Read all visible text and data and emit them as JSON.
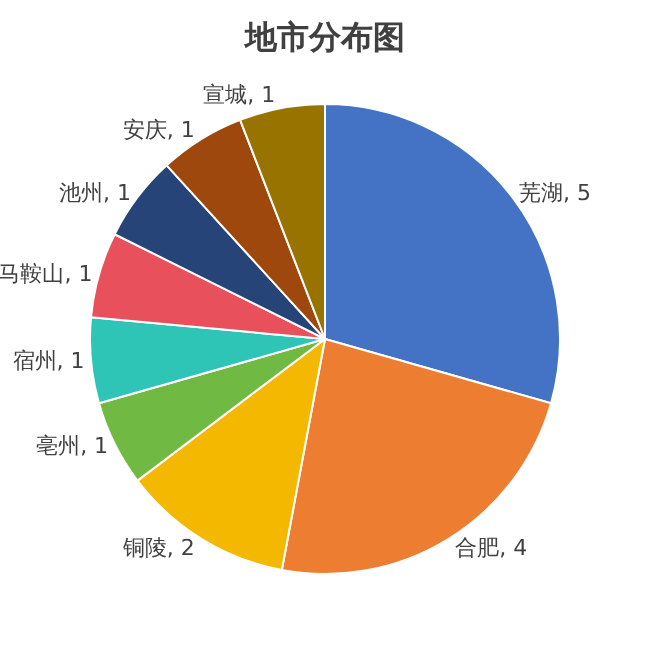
{
  "chart_data": {
    "type": "pie",
    "title": "地市分布图",
    "categories": [
      "芜湖",
      "合肥",
      "铜陵",
      "亳州",
      "宿州",
      "马鞍山",
      "池州",
      "安庆",
      "宣城"
    ],
    "values": [
      5,
      4,
      2,
      1,
      1,
      1,
      1,
      1,
      1
    ],
    "colors": [
      "#4472c4",
      "#ed7d31",
      "#f5b800",
      "#70b943",
      "#2ec4b6",
      "#e8505b",
      "#264478",
      "#9e480e",
      "#997300"
    ],
    "value_labels": [
      ", 5",
      ", 4",
      ", 2",
      ", 1",
      ", 1",
      ", 1",
      ", 1",
      ", 1",
      ", 1"
    ],
    "legend": false
  }
}
